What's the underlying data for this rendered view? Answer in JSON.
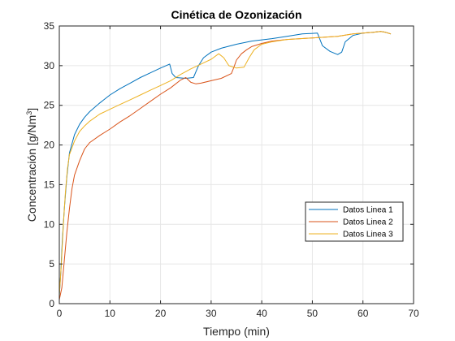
{
  "chart_data": {
    "type": "line",
    "title": "Cinética de Ozonización",
    "xlabel": "Tiempo (min)",
    "ylabel_main": "Concentración [g/Nm",
    "ylabel_sup": "3",
    "ylabel_end": "]",
    "xlim": [
      0,
      70
    ],
    "ylim": [
      0,
      35
    ],
    "xticks": [
      0,
      10,
      20,
      30,
      40,
      50,
      60,
      70
    ],
    "yticks": [
      0,
      5,
      10,
      15,
      20,
      25,
      30,
      35
    ],
    "grid": true,
    "legend_position": "right",
    "series": [
      {
        "name": "Datos Linea 1",
        "color": "#0072BD",
        "points": [
          [
            0,
            1
          ],
          [
            0.3,
            4
          ],
          [
            0.6,
            8
          ],
          [
            1,
            12
          ],
          [
            1.5,
            16
          ],
          [
            2,
            19
          ],
          [
            3,
            21.3
          ],
          [
            4,
            22.6
          ],
          [
            5,
            23.5
          ],
          [
            6,
            24.2
          ],
          [
            8,
            25.3
          ],
          [
            10,
            26.3
          ],
          [
            12,
            27.1
          ],
          [
            14,
            27.8
          ],
          [
            16,
            28.5
          ],
          [
            18,
            29.1
          ],
          [
            20,
            29.7
          ],
          [
            21.8,
            30.2
          ],
          [
            22.3,
            29
          ],
          [
            23,
            28.5
          ],
          [
            25,
            28.4
          ],
          [
            26.5,
            28.5
          ],
          [
            27.5,
            30
          ],
          [
            28.5,
            31
          ],
          [
            30,
            31.7
          ],
          [
            32,
            32.2
          ],
          [
            35,
            32.7
          ],
          [
            38,
            33.1
          ],
          [
            42,
            33.4
          ],
          [
            45,
            33.7
          ],
          [
            48,
            34
          ],
          [
            51,
            34.1
          ],
          [
            52,
            32.5
          ],
          [
            53.5,
            31.8
          ],
          [
            55,
            31.4
          ],
          [
            55.8,
            31.7
          ],
          [
            56.5,
            33
          ],
          [
            58,
            33.8
          ],
          [
            60,
            34.1
          ],
          [
            62,
            34.2
          ],
          [
            63.5,
            34.3
          ],
          [
            64.5,
            34.2
          ],
          [
            65.5,
            34
          ]
        ]
      },
      {
        "name": "Datos Linea 2",
        "color": "#D95319",
        "points": [
          [
            0,
            0.5
          ],
          [
            0.5,
            2
          ],
          [
            1,
            5.5
          ],
          [
            1.5,
            9
          ],
          [
            2,
            12
          ],
          [
            2.5,
            14.5
          ],
          [
            3,
            16.2
          ],
          [
            4,
            18
          ],
          [
            5,
            19.5
          ],
          [
            6,
            20.3
          ],
          [
            8,
            21.2
          ],
          [
            10,
            22
          ],
          [
            12,
            22.9
          ],
          [
            14,
            23.7
          ],
          [
            16,
            24.6
          ],
          [
            18,
            25.5
          ],
          [
            20,
            26.4
          ],
          [
            22,
            27.2
          ],
          [
            24,
            28.2
          ],
          [
            25,
            28.5
          ],
          [
            26,
            27.9
          ],
          [
            27,
            27.7
          ],
          [
            28,
            27.8
          ],
          [
            30,
            28.1
          ],
          [
            32,
            28.4
          ],
          [
            34,
            29
          ],
          [
            34.5,
            29.8
          ],
          [
            35,
            30.7
          ],
          [
            36,
            31.5
          ],
          [
            37,
            32
          ],
          [
            38,
            32.4
          ],
          [
            40,
            32.8
          ],
          [
            42,
            33.1
          ],
          [
            45,
            33.3
          ],
          [
            50,
            33.5
          ],
          [
            55,
            33.7
          ],
          [
            58,
            34
          ],
          [
            60,
            34.1
          ],
          [
            62,
            34.2
          ],
          [
            63.5,
            34.3
          ],
          [
            64.5,
            34.2
          ],
          [
            65.5,
            34
          ]
        ]
      },
      {
        "name": "Datos Linea 3",
        "color": "#EDB120",
        "points": [
          [
            0,
            1
          ],
          [
            0.4,
            5
          ],
          [
            0.8,
            10
          ],
          [
            1.2,
            14
          ],
          [
            1.6,
            17
          ],
          [
            2,
            18.8
          ],
          [
            3,
            20.5
          ],
          [
            4,
            21.7
          ],
          [
            5,
            22.4
          ],
          [
            6,
            23
          ],
          [
            8,
            23.9
          ],
          [
            10,
            24.5
          ],
          [
            12,
            25.1
          ],
          [
            14,
            25.7
          ],
          [
            16,
            26.3
          ],
          [
            18,
            26.9
          ],
          [
            20,
            27.5
          ],
          [
            22,
            28.1
          ],
          [
            24,
            28.9
          ],
          [
            26,
            29.6
          ],
          [
            28,
            30.2
          ],
          [
            30,
            30.8
          ],
          [
            31.5,
            31.5
          ],
          [
            32.5,
            31
          ],
          [
            33.5,
            30
          ],
          [
            35,
            29.7
          ],
          [
            36.5,
            29.8
          ],
          [
            37.5,
            31
          ],
          [
            38.5,
            32
          ],
          [
            40,
            32.7
          ],
          [
            42,
            33
          ],
          [
            45,
            33.3
          ],
          [
            50,
            33.5
          ],
          [
            55,
            33.7
          ],
          [
            58,
            34
          ],
          [
            60,
            34.1
          ],
          [
            62,
            34.2
          ],
          [
            63.5,
            34.3
          ],
          [
            64.5,
            34.2
          ],
          [
            65.5,
            34
          ]
        ]
      }
    ]
  }
}
